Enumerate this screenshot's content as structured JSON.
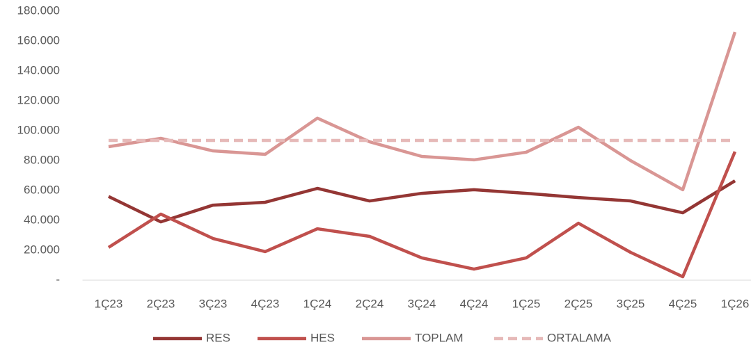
{
  "chart_data": {
    "type": "line",
    "categories": [
      "1Ç23",
      "2Ç23",
      "3Ç23",
      "4Ç23",
      "1Ç24",
      "2Ç24",
      "3Ç24",
      "4Ç24",
      "1Ç25",
      "2Ç25",
      "3Ç25",
      "4Ç25",
      "1Ç26"
    ],
    "series": [
      {
        "name": "RES",
        "color": "#943634",
        "values": [
          56000,
          39000,
          50200,
          52100,
          61400,
          53000,
          58100,
          60500,
          58100,
          55300,
          53000,
          45100,
          66500
        ]
      },
      {
        "name": "HES",
        "color": "#c0504d",
        "values": [
          21900,
          44200,
          27900,
          19100,
          34400,
          29300,
          14900,
          7400,
          14900,
          38100,
          18600,
          2300,
          86000
        ]
      },
      {
        "name": "TOPLAM",
        "color": "#d99694",
        "values": [
          89300,
          94900,
          86500,
          84200,
          108400,
          92600,
          82800,
          80500,
          85600,
          102300,
          80000,
          60500,
          166000
        ]
      },
      {
        "name": "ORTALAMA",
        "color": "#e6b9b8",
        "dashed": true,
        "values": [
          93500,
          93500,
          93500,
          93500,
          93500,
          93500,
          93500,
          93500,
          93500,
          93500,
          93500,
          93500,
          93500
        ]
      }
    ],
    "ylim": [
      0,
      180000
    ],
    "yticks": [
      {
        "value": 0,
        "label": "-"
      },
      {
        "value": 20000,
        "label": "20.000"
      },
      {
        "value": 40000,
        "label": "40.000"
      },
      {
        "value": 60000,
        "label": "60.000"
      },
      {
        "value": 80000,
        "label": "80.000"
      },
      {
        "value": 100000,
        "label": "100.000"
      },
      {
        "value": 120000,
        "label": "120.000"
      },
      {
        "value": 140000,
        "label": "140.000"
      },
      {
        "value": 160000,
        "label": "160.000"
      },
      {
        "value": 180000,
        "label": "180.000"
      }
    ],
    "grid": false,
    "legend": "bottom"
  }
}
